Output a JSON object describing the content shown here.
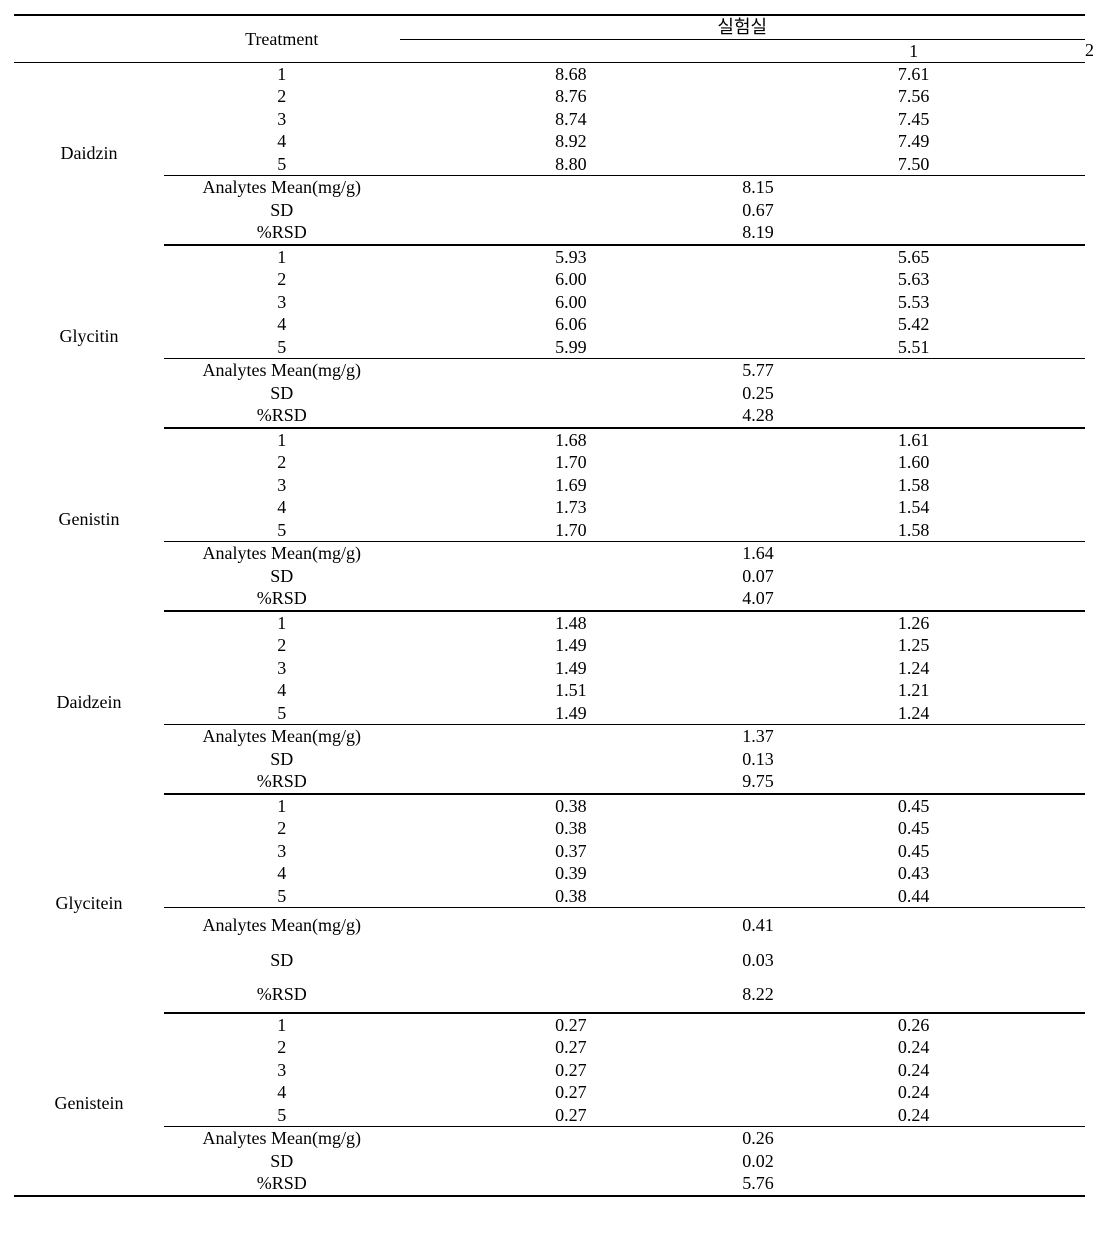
{
  "header": {
    "treatment": "Treatment",
    "lab_title": "실험실",
    "lab1": "1",
    "lab2": "2"
  },
  "stat_labels": {
    "mean": "Analytes Mean(mg/g)",
    "sd": "SD",
    "rsd": "%RSD"
  },
  "compounds": [
    {
      "name": "Daidzin",
      "rows": [
        {
          "t": "1",
          "a": "8.68",
          "b": "7.61"
        },
        {
          "t": "2",
          "a": "8.76",
          "b": "7.56"
        },
        {
          "t": "3",
          "a": "8.74",
          "b": "7.45"
        },
        {
          "t": "4",
          "a": "8.92",
          "b": "7.49"
        },
        {
          "t": "5",
          "a": "8.80",
          "b": "7.50"
        }
      ],
      "stats": {
        "mean": "8.15",
        "sd": "0.67",
        "rsd": "8.19"
      }
    },
    {
      "name": "Glycitin",
      "rows": [
        {
          "t": "1",
          "a": "5.93",
          "b": "5.65"
        },
        {
          "t": "2",
          "a": "6.00",
          "b": "5.63"
        },
        {
          "t": "3",
          "a": "6.00",
          "b": "5.53"
        },
        {
          "t": "4",
          "a": "6.06",
          "b": "5.42"
        },
        {
          "t": "5",
          "a": "5.99",
          "b": "5.51"
        }
      ],
      "stats": {
        "mean": "5.77",
        "sd": "0.25",
        "rsd": "4.28"
      }
    },
    {
      "name": "Genistin",
      "rows": [
        {
          "t": "1",
          "a": "1.68",
          "b": "1.61"
        },
        {
          "t": "2",
          "a": "1.70",
          "b": "1.60"
        },
        {
          "t": "3",
          "a": "1.69",
          "b": "1.58"
        },
        {
          "t": "4",
          "a": "1.73",
          "b": "1.54"
        },
        {
          "t": "5",
          "a": "1.70",
          "b": "1.58"
        }
      ],
      "stats": {
        "mean": "1.64",
        "sd": "0.07",
        "rsd": "4.07"
      }
    },
    {
      "name": "Daidzein",
      "rows": [
        {
          "t": "1",
          "a": "1.48",
          "b": "1.26"
        },
        {
          "t": "2",
          "a": "1.49",
          "b": "1.25"
        },
        {
          "t": "3",
          "a": "1.49",
          "b": "1.24"
        },
        {
          "t": "4",
          "a": "1.51",
          "b": "1.21"
        },
        {
          "t": "5",
          "a": "1.49",
          "b": "1.24"
        }
      ],
      "stats": {
        "mean": "1.37",
        "sd": "0.13",
        "rsd": "9.75"
      }
    },
    {
      "name": "Glycitein",
      "rows": [
        {
          "t": "1",
          "a": "0.38",
          "b": "0.45"
        },
        {
          "t": "2",
          "a": "0.38",
          "b": "0.45"
        },
        {
          "t": "3",
          "a": "0.37",
          "b": "0.45"
        },
        {
          "t": "4",
          "a": "0.39",
          "b": "0.43"
        },
        {
          "t": "5",
          "a": "0.38",
          "b": "0.44"
        }
      ],
      "stats": {
        "mean": "0.41",
        "sd": "0.03",
        "rsd": "8.22"
      },
      "stats_padded": true
    },
    {
      "name": "Genistein",
      "rows": [
        {
          "t": "1",
          "a": "0.27",
          "b": "0.26"
        },
        {
          "t": "2",
          "a": "0.27",
          "b": "0.24"
        },
        {
          "t": "3",
          "a": "0.27",
          "b": "0.24"
        },
        {
          "t": "4",
          "a": "0.27",
          "b": "0.24"
        },
        {
          "t": "5",
          "a": "0.27",
          "b": "0.24"
        }
      ],
      "stats": {
        "mean": "0.26",
        "sd": "0.02",
        "rsd": "5.76"
      }
    }
  ]
}
